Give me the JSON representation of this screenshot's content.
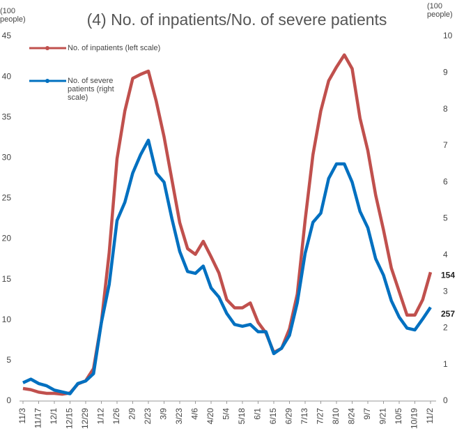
{
  "chart_data": {
    "type": "line",
    "title": "(4) No. of inpatients/No. of severe patients",
    "y_axis_label": "(100 people)",
    "y2_axis_label": "(100 people)",
    "categories": [
      "11/3",
      null,
      "11/17",
      null,
      "12/1",
      null,
      "12/15",
      null,
      "12/29",
      null,
      "1/12",
      null,
      "1/26",
      null,
      "2/9",
      null,
      "2/23",
      null,
      "3/9",
      null,
      "3/23",
      null,
      "4/6",
      null,
      "4/20",
      null,
      "5/4",
      null,
      "5/18",
      null,
      "6/1",
      null,
      "6/15",
      null,
      "6/29",
      null,
      "7/13",
      null,
      "7/27",
      null,
      "8/10",
      null,
      "8/24",
      null,
      "9/7",
      null,
      "9/21",
      null,
      "10/5",
      null,
      "10/19",
      null,
      "11/2"
    ],
    "series": [
      {
        "name": "No. of inpatients (left scale)",
        "color": "#c0504d",
        "axis": "y",
        "values": [
          1.55,
          1.4,
          1.1,
          0.95,
          0.95,
          0.85,
          1,
          2.1,
          2.5,
          4,
          9.7,
          18.3,
          29.9,
          35.8,
          39.8,
          40.3,
          40.7,
          37,
          32.6,
          27.3,
          22,
          18.8,
          18.1,
          19.7,
          17.8,
          15.8,
          12.5,
          11.5,
          11.5,
          12.1,
          9.7,
          8.4,
          6,
          6.5,
          8.9,
          13.2,
          22.3,
          30.4,
          35.8,
          39.5,
          41.2,
          42.7,
          41,
          34.9,
          30.9,
          25.4,
          21.1,
          16.4,
          13.5,
          10.6,
          10.6,
          12.5,
          15.9
        ]
      },
      {
        "name": "No. of severe patients (right scale)",
        "color": "#0070c0",
        "axis": "y2",
        "values": [
          0.5,
          0.6,
          0.48,
          0.42,
          0.3,
          0.25,
          0.2,
          0.48,
          0.55,
          0.75,
          2.15,
          3.2,
          4.95,
          5.45,
          6.25,
          6.75,
          7.15,
          6.25,
          6.0,
          5.0,
          4.1,
          3.55,
          3.5,
          3.7,
          3.1,
          2.85,
          2.4,
          2.1,
          2.05,
          2.1,
          1.9,
          1.9,
          1.3,
          1.45,
          1.8,
          2.7,
          4.05,
          4.9,
          5.15,
          6.1,
          6.5,
          6.5,
          6.0,
          5.2,
          4.75,
          3.9,
          3.45,
          2.75,
          2.3,
          2.0,
          1.95,
          2.25,
          2.57
        ]
      }
    ],
    "annotations": [
      "154",
      "257"
    ],
    "ylim": [
      0,
      45
    ],
    "yticks": [
      0,
      5,
      10,
      15,
      20,
      25,
      30,
      35,
      40,
      45
    ],
    "y2lim": [
      0,
      10
    ],
    "y2ticks": [
      0,
      1,
      2,
      3,
      4,
      5,
      6,
      7,
      8,
      9,
      10
    ]
  }
}
